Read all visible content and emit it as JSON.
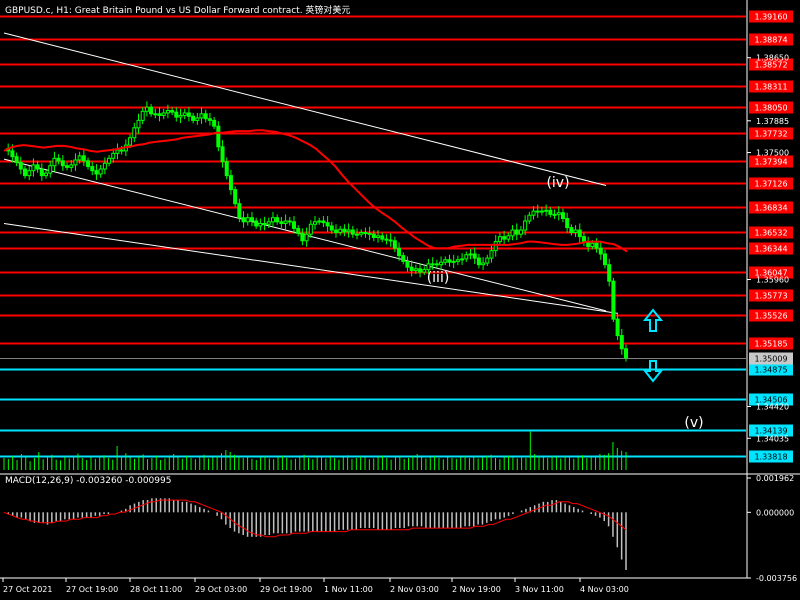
{
  "header": {
    "title": "GBPUSD.c, H1:  Great Britain Pound vs US Dollar Forward contract. 英镑对美元",
    "macd_title": "MACD(12,26,9) -0.003260 -0.000995"
  },
  "colors": {
    "background": "#000000",
    "resistance": "#ff0000",
    "support": "#00e5ff",
    "candles": "#00ff00",
    "ma": "#ff0000",
    "channel": "#ffffff",
    "histogram": "#c0c0c0",
    "signal": "#ff0000",
    "arrow": "#00e5ff"
  },
  "chart_data": [
    {
      "type": "candlestick",
      "title": "GBPUSD.c, H1",
      "x_labels": [
        "27 Oct 2021",
        "27 Oct 19:00",
        "28 Oct 11:00",
        "29 Oct 03:00",
        "29 Oct 19:00",
        "1 Nov 11:00",
        "2 Nov 03:00",
        "2 Nov 19:00",
        "3 Nov 11:00",
        "4 Nov 03:00"
      ],
      "y_ticks": [
        "1.38650",
        "1.37885",
        "1.37500",
        "1.35960",
        "1.34420",
        "1.34035"
      ],
      "ylim": [
        1.3365,
        1.3935
      ],
      "price_levels_resistance": [
        "1.39160",
        "1.38874",
        "1.38572",
        "1.38311",
        "1.38050",
        "1.37732",
        "1.37394",
        "1.37126",
        "1.36834",
        "1.36532",
        "1.36344",
        "1.36047",
        "1.35773",
        "1.35526",
        "1.35185"
      ],
      "price_levels_support": [
        "1.34875",
        "1.34506",
        "1.34139",
        "1.33818"
      ],
      "current_price": "1.35009",
      "wave_labels": [
        "(iv)",
        "(iii)",
        "(v)"
      ],
      "close_series": [
        1.3755,
        1.3752,
        1.3745,
        1.3738,
        1.373,
        1.3722,
        1.3728,
        1.3735,
        1.373,
        1.3722,
        1.3725,
        1.3734,
        1.3743,
        1.374,
        1.3734,
        1.3732,
        1.3735,
        1.3741,
        1.3746,
        1.374,
        1.3733,
        1.3728,
        1.3724,
        1.373,
        1.3737,
        1.3743,
        1.3749,
        1.3753,
        1.3752,
        1.3759,
        1.3768,
        1.378,
        1.3789,
        1.38,
        1.3805,
        1.3797,
        1.3797,
        1.3795,
        1.3798,
        1.3801,
        1.3799,
        1.3793,
        1.3795,
        1.3798,
        1.3794,
        1.3789,
        1.3792,
        1.3797,
        1.3791,
        1.3789,
        1.3782,
        1.3757,
        1.3739,
        1.3722,
        1.3705,
        1.3688,
        1.3671,
        1.3666,
        1.3671,
        1.3667,
        1.3661,
        1.3664,
        1.3663,
        1.3666,
        1.3671,
        1.3666,
        1.3664,
        1.3667,
        1.3666,
        1.3658,
        1.3652,
        1.3643,
        1.3651,
        1.3663,
        1.3666,
        1.3667,
        1.3665,
        1.3661,
        1.3656,
        1.3653,
        1.3657,
        1.3654,
        1.3656,
        1.3651,
        1.3651,
        1.3653,
        1.3652,
        1.3651,
        1.3647,
        1.3649,
        1.3645,
        1.3644,
        1.3643,
        1.3634,
        1.3625,
        1.3618,
        1.3611,
        1.3607,
        1.3609,
        1.3605,
        1.3608,
        1.3615,
        1.3615,
        1.3614,
        1.3617,
        1.362,
        1.3617,
        1.3618,
        1.362,
        1.3621,
        1.3626,
        1.3627,
        1.3622,
        1.3614,
        1.3616,
        1.3622,
        1.3631,
        1.3642,
        1.3648,
        1.3645,
        1.3649,
        1.3656,
        1.3651,
        1.3656,
        1.3667,
        1.3674,
        1.3679,
        1.3678,
        1.3679,
        1.368,
        1.3675,
        1.3675,
        1.3677,
        1.367,
        1.3659,
        1.3653,
        1.3656,
        1.3648,
        1.3641,
        1.3636,
        1.364,
        1.3634,
        1.3627,
        1.3614,
        1.3594,
        1.3548,
        1.3528,
        1.3512,
        1.3501
      ],
      "ma_series": [
        1.3752,
        1.3756,
        1.3758,
        1.3759,
        1.3758,
        1.3757,
        1.3756,
        1.3757,
        1.3758,
        1.3758,
        1.3757,
        1.3755,
        1.3754,
        1.3752,
        1.3751,
        1.3752,
        1.3753,
        1.3754,
        1.3756,
        1.3757,
        1.3759,
        1.376,
        1.3762,
        1.3763,
        1.3764,
        1.3765,
        1.3766,
        1.3768,
        1.3769,
        1.377,
        1.3771,
        1.3772,
        1.3774,
        1.3774,
        1.3775,
        1.3776,
        1.3776,
        1.3776,
        1.3777,
        1.3777,
        1.3776,
        1.3775,
        1.3773,
        1.3771,
        1.3768,
        1.3764,
        1.376,
        1.3755,
        1.3748,
        1.3741,
        1.3733,
        1.3723,
        1.3714,
        1.3706,
        1.3698,
        1.369,
        1.3683,
        1.3677,
        1.3672,
        1.3666,
        1.3659,
        1.3653,
        1.3647,
        1.3642,
        1.3637,
        1.3634,
        1.3634,
        1.3634,
        1.3636,
        1.3637,
        1.3638,
        1.3638,
        1.3638,
        1.3638,
        1.3638,
        1.3638,
        1.3638,
        1.3639,
        1.364,
        1.3642,
        1.3642,
        1.3641,
        1.364,
        1.3639,
        1.3638,
        1.3638,
        1.3639,
        1.364,
        1.3642,
        1.3642,
        1.3642,
        1.364,
        1.3639,
        1.3635,
        1.363
      ],
      "volume_series": [
        0.3,
        0.28,
        0.35,
        0.25,
        0.4,
        0.33,
        0.22,
        0.3,
        0.45,
        0.27,
        0.31,
        0.38,
        0.26,
        0.24,
        0.33,
        0.29,
        0.36,
        0.41,
        0.3,
        0.25,
        0.32,
        0.28,
        0.34,
        0.37,
        0.3,
        0.26,
        0.6,
        0.35,
        0.42,
        0.31,
        0.28,
        0.33,
        0.39,
        0.27,
        0.3,
        0.36,
        0.25,
        0.29,
        0.34,
        0.4,
        0.31,
        0.28,
        0.36,
        0.3,
        0.27,
        0.33,
        0.38,
        0.29,
        0.31,
        0.35,
        0.42,
        0.5,
        0.45,
        0.38,
        0.33,
        0.3,
        0.36,
        0.28,
        0.25,
        0.31,
        0.34,
        0.29,
        0.27,
        0.32,
        0.36,
        0.3,
        0.26,
        0.28,
        0.33,
        0.38,
        0.3,
        0.27,
        0.31,
        0.35,
        0.29,
        0.33,
        0.3,
        0.26,
        0.32,
        0.37,
        0.28,
        0.3,
        0.34,
        0.31,
        0.27,
        0.29,
        0.33,
        0.36,
        0.3,
        0.26,
        0.31,
        0.34,
        0.28,
        0.3,
        0.36,
        0.4,
        0.33,
        0.29,
        0.31,
        0.35,
        0.3,
        0.27,
        0.33,
        0.3,
        0.28,
        0.32,
        0.36,
        0.3,
        0.34,
        0.29,
        0.31,
        0.35,
        0.38,
        0.3,
        0.27,
        0.33,
        0.36,
        0.31,
        0.29,
        0.34,
        0.3,
        0.96,
        0.4,
        0.35,
        0.32,
        0.3,
        0.36,
        0.33,
        0.29,
        0.34,
        0.31,
        0.28,
        0.33,
        0.37,
        0.3,
        0.32,
        0.35,
        0.4,
        0.38,
        0.42,
        0.7,
        0.55,
        0.48,
        0.45
      ]
    },
    {
      "type": "bar",
      "title": "MACD(12,26,9) -0.003260 -0.000995",
      "y_ticks": [
        "0.001962",
        "0.000000",
        "-0.003756"
      ],
      "ylim": [
        -0.003756,
        0.001962
      ],
      "macd_values": [
        0.0,
        -0.0001,
        -0.0002,
        -0.0003,
        -0.0003,
        -0.0004,
        -0.0005,
        -0.0006,
        -0.0006,
        -0.0006,
        -0.0007,
        -0.0006,
        -0.0005,
        -0.0005,
        -0.0004,
        -0.0004,
        -0.0004,
        -0.0003,
        -0.0003,
        -0.0003,
        -0.0003,
        -0.0002,
        -0.0002,
        -0.0001,
        -0.0001,
        0.0,
        0.0,
        0.0001,
        0.0002,
        0.0004,
        0.0005,
        0.0006,
        0.0007,
        0.0007,
        0.0008,
        0.0008,
        0.0008,
        0.0008,
        0.0008,
        0.0007,
        0.0007,
        0.0006,
        0.0006,
        0.0005,
        0.0004,
        0.0003,
        0.0002,
        0.0001,
        0.0,
        -0.0002,
        -0.0004,
        -0.0007,
        -0.0009,
        -0.0011,
        -0.0012,
        -0.0013,
        -0.0014,
        -0.0014,
        -0.0014,
        -0.0014,
        -0.0013,
        -0.0013,
        -0.0012,
        -0.0012,
        -0.0012,
        -0.0012,
        -0.0012,
        -0.0011,
        -0.0011,
        -0.0011,
        -0.0011,
        -0.0011,
        -0.0011,
        -0.0011,
        -0.0011,
        -0.0011,
        -0.0011,
        -0.001,
        -0.001,
        -0.001,
        -0.001,
        -0.001,
        -0.0009,
        -0.0009,
        -0.0009,
        -0.0009,
        -0.001,
        -0.001,
        -0.001,
        -0.001,
        -0.0009,
        -0.0009,
        -0.0009,
        -0.0008,
        -0.0008,
        -0.0008,
        -0.0008,
        -0.0009,
        -0.0009,
        -0.0009,
        -0.0009,
        -0.0009,
        -0.0009,
        -0.0009,
        -0.0009,
        -0.0009,
        -0.0008,
        -0.0008,
        -0.0008,
        -0.0007,
        -0.0007,
        -0.0006,
        -0.0005,
        -0.0004,
        -0.0004,
        -0.0003,
        -0.0002,
        -0.0001,
        0.0,
        0.0001,
        0.0002,
        0.0003,
        0.0004,
        0.0005,
        0.0006,
        0.0006,
        0.0007,
        0.0007,
        0.0006,
        0.0005,
        0.0004,
        0.0003,
        0.0002,
        0.0001,
        0.0,
        -0.0001,
        -0.0002,
        -0.0003,
        -0.0005,
        -0.0008,
        -0.0014,
        -0.002,
        -0.0027,
        -0.0033
      ],
      "signal_values": [
        0.0,
        -0.0001,
        -0.0002,
        -0.0003,
        -0.0004,
        -0.0004,
        -0.0005,
        -0.0005,
        -0.0006,
        -0.0006,
        -0.0006,
        -0.0006,
        -0.0005,
        -0.0005,
        -0.0005,
        -0.0004,
        -0.0004,
        -0.0004,
        -0.0003,
        -0.0003,
        -0.0003,
        -0.0003,
        -0.0002,
        -0.0002,
        -0.0001,
        -0.0001,
        0.0,
        0.0,
        0.0001,
        0.0002,
        0.0003,
        0.0004,
        0.0005,
        0.0006,
        0.0006,
        0.0007,
        0.0007,
        0.0007,
        0.0007,
        0.0007,
        0.0007,
        0.0007,
        0.0006,
        0.0006,
        0.0005,
        0.0004,
        0.0003,
        0.0002,
        0.0001,
        0.0,
        -0.0002,
        -0.0004,
        -0.0006,
        -0.0008,
        -0.0009,
        -0.0011,
        -0.0012,
        -0.0013,
        -0.0013,
        -0.0014,
        -0.0014,
        -0.0014,
        -0.0013,
        -0.0013,
        -0.0013,
        -0.0012,
        -0.0012,
        -0.0012,
        -0.0012,
        -0.0011,
        -0.0011,
        -0.0011,
        -0.0011,
        -0.0011,
        -0.0011,
        -0.0011,
        -0.0011,
        -0.0011,
        -0.001,
        -0.001,
        -0.001,
        -0.001,
        -0.001,
        -0.001,
        -0.001,
        -0.001,
        -0.001,
        -0.001,
        -0.001,
        -0.001,
        -0.001,
        -0.001,
        -0.0009,
        -0.0009,
        -0.0009,
        -0.0009,
        -0.0009,
        -0.0009,
        -0.0009,
        -0.0009,
        -0.0009,
        -0.0009,
        -0.0009,
        -0.0009,
        -0.0009,
        -0.0009,
        -0.0008,
        -0.0008,
        -0.0008,
        -0.0007,
        -0.0007,
        -0.0006,
        -0.0005,
        -0.0004,
        -0.0004,
        -0.0003,
        -0.0002,
        -0.0001,
        0.0,
        0.0001,
        0.0002,
        0.0003,
        0.0004,
        0.0004,
        0.0005,
        0.0006,
        0.0006,
        0.0006,
        0.0005,
        0.0005,
        0.0004,
        0.0003,
        0.0002,
        0.0001,
        0.0,
        -0.0001,
        -0.0002,
        -0.0004,
        -0.0006,
        -0.0008,
        -0.001
      ]
    }
  ]
}
